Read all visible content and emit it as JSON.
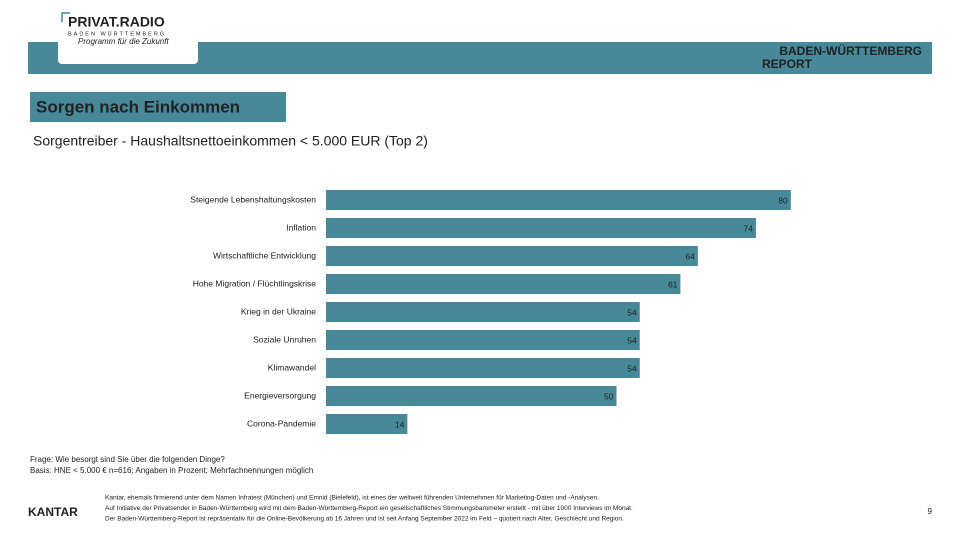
{
  "header": {
    "logo_title": "PRIVAT.RADIO",
    "logo_region": "BADEN WÜRTTEMBERG",
    "logo_slogan": "Programm für die Zukunft",
    "report_title": "BADEN-WÜRTTEMBERG",
    "report_subtitle": "REPORT"
  },
  "chart_data": {
    "type": "bar",
    "title": "Sorgen nach Einkommen",
    "subtitle": "Sorgentreiber - Haushaltsnettoeinkommen < 5.000 EUR (Top 2)",
    "categories": [
      "Steigende Lebenshaltungskosten",
      "Inflation",
      "Wirtschaftliche Entwicklung",
      "Hohe Migration / Flüchtlingskrise",
      "Krieg in der Ukraine",
      "Soziale Unruhen",
      "Klimawandel",
      "Energieversorgung",
      "Corona-Pandemie"
    ],
    "values": [
      80,
      74,
      64,
      61,
      54,
      54,
      54,
      50,
      14
    ],
    "color": "#478899",
    "xlim": [
      0,
      100
    ]
  },
  "footer": {
    "question": "Frage: Wie besorgt sind Sie über die folgenden Dinge?",
    "basis": "Basis: HNE < 5.000 € n=616; Angaben in Prozent; Mehrfachnennungen möglich",
    "brand": "KANTAR",
    "notes": [
      "Kantar, ehemals firmierend unter dem Namen Infratest (München) und Emnid (Bielefeld), ist eines der weltweit führenden Unternehmen für Marketing-Daten und -Analysen.",
      "Auf Initiative der Privatsender in Baden-Württemberg wird mit dem Baden-Württemberg-Report ein gesellschaftliches Stimmungsbarometer erstellt - mit über 1000 Interviews im Monat.",
      "Der Baden-Württemberg-Report ist repräsentativ für die Online-Bevölkerung ab 16 Jahren und ist seit Anfang September 2022 im Feld – quotiert nach Alter, Geschlecht und Region."
    ],
    "page_number": "9"
  }
}
